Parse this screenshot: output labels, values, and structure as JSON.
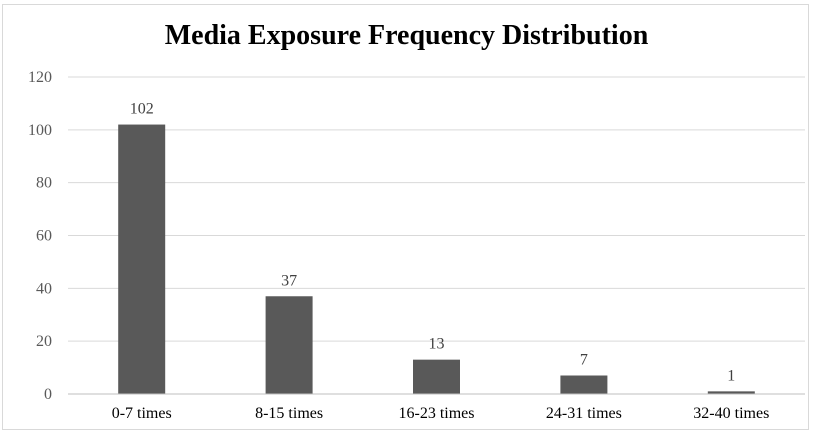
{
  "chart_data": {
    "type": "bar",
    "title": "Media Exposure Frequency Distribution",
    "categories": [
      "0-7 times",
      "8-15 times",
      "16-23 times",
      "24-31 times",
      "32-40 times"
    ],
    "values": [
      102,
      37,
      13,
      7,
      1
    ],
    "data_labels": [
      "102",
      "37",
      "13",
      "7",
      "1"
    ],
    "ylim": [
      0,
      120
    ],
    "yticks": [
      0,
      20,
      40,
      60,
      80,
      100,
      120
    ],
    "xlabel": "",
    "ylabel": "",
    "grid": true,
    "legend": "none",
    "colors": {
      "bar": "#595959",
      "grid": "#d9d9d9",
      "axis": "#bfbfbf"
    }
  }
}
